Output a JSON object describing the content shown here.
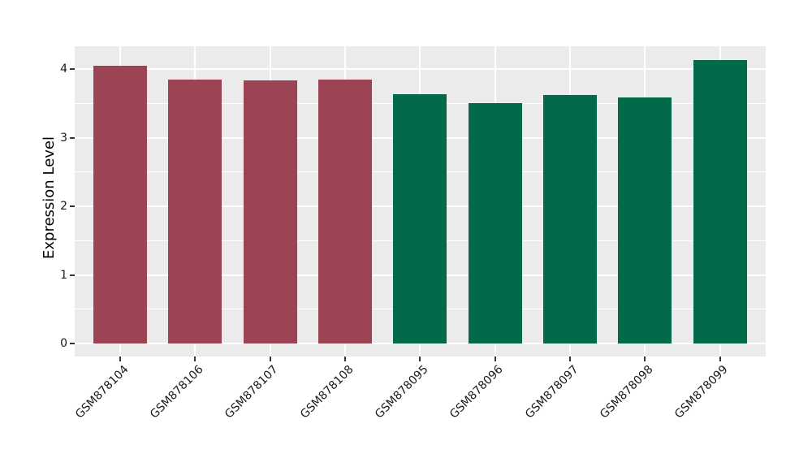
{
  "chart_data": {
    "type": "bar",
    "title": "",
    "xlabel": "",
    "ylabel": "Expression Level",
    "categories": [
      "GSM878104",
      "GSM878106",
      "GSM878107",
      "GSM878108",
      "GSM878095",
      "GSM878096",
      "GSM878097",
      "GSM878098",
      "GSM878099"
    ],
    "values": [
      4.05,
      3.85,
      3.84,
      3.85,
      3.63,
      3.5,
      3.62,
      3.59,
      4.13
    ],
    "bar_colors": [
      "#9C4454",
      "#9C4454",
      "#9C4454",
      "#9C4454",
      "#026A4B",
      "#026A4B",
      "#026A4B",
      "#026A4B",
      "#026A4B"
    ],
    "group_colors": {
      "maroon_group": "#9C4454",
      "green_group": "#026A4B"
    },
    "y_major_breaks": [
      0,
      1,
      2,
      3,
      4
    ],
    "y_tick_labels": [
      "0",
      "1",
      "2",
      "3",
      "4"
    ],
    "y_minor_breaks": [
      0.5,
      1.5,
      2.5,
      3.5
    ],
    "ylim": [
      -0.21,
      4.33
    ],
    "grid": "major and minor horizontal white gridlines; vertical white gridlines at each category center",
    "legend_position": "none",
    "panel_background": "#EBEBEB",
    "gridline_color": "#FFFFFF",
    "axis_text_color": "#1a1a1a",
    "tick_mark_color": "#333333",
    "x_label_rotation_deg": 45
  }
}
